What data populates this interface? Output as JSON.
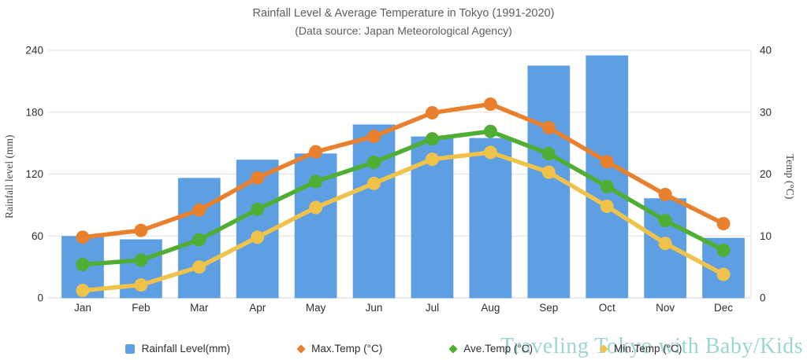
{
  "chart_data": {
    "type": "combo-bar-line",
    "title": "Rainfall Level & Average Temperature in Tokyo (1991-2020)",
    "subtitle": "(Data source: Japan Meteorological Agency)",
    "categories": [
      "Jan",
      "Feb",
      "Mar",
      "Apr",
      "May",
      "Jun",
      "Jul",
      "Aug",
      "Sep",
      "Oct",
      "Nov",
      "Dec"
    ],
    "bar_series": {
      "name": "Rainfall Level(mm)",
      "axis": "left",
      "color": "#5d9fe2",
      "border_color": "#4a95e0",
      "values": [
        59.7,
        56.5,
        116.0,
        133.7,
        139.7,
        167.8,
        156.2,
        154.7,
        224.9,
        234.8,
        96.3,
        57.9
      ]
    },
    "line_series": [
      {
        "name": "Max.Temp (°C)",
        "axis": "right",
        "color": "#e8802e",
        "values": [
          9.8,
          10.9,
          14.2,
          19.4,
          23.6,
          26.1,
          29.9,
          31.3,
          27.5,
          22.0,
          16.7,
          12.0
        ]
      },
      {
        "name": "Ave.Temp (°C)",
        "axis": "right",
        "color": "#4fae33",
        "values": [
          5.4,
          6.1,
          9.4,
          14.3,
          18.8,
          21.9,
          25.7,
          26.9,
          23.3,
          18.0,
          12.5,
          7.7
        ]
      },
      {
        "name": "Min.Temp (°C)",
        "axis": "right",
        "color": "#efc24a",
        "values": [
          1.2,
          2.1,
          5.0,
          9.8,
          14.6,
          18.5,
          22.4,
          23.5,
          20.3,
          14.8,
          8.8,
          3.8
        ]
      }
    ],
    "ylabel_left": "Rainfall level (mm)",
    "ylabel_right": "Temp (°C)",
    "ylim_left": [
      0,
      240
    ],
    "yticks_left": [
      0,
      60,
      120,
      180,
      240
    ],
    "ylim_right": [
      0,
      40
    ],
    "yticks_right": [
      0,
      10,
      20,
      30,
      40
    ],
    "grid": true,
    "legend_position": "bottom"
  },
  "watermark": {
    "text": "Traveling Tokyo with Baby/Kids",
    "color": "#9bd6d1"
  },
  "colors": {
    "title": "#5d5d5d",
    "tick_label": "#2f2f2f",
    "axis_title": "#454545",
    "gridline": "#e6e6e6",
    "axis_line": "#dedede",
    "background": "#ffffff"
  }
}
